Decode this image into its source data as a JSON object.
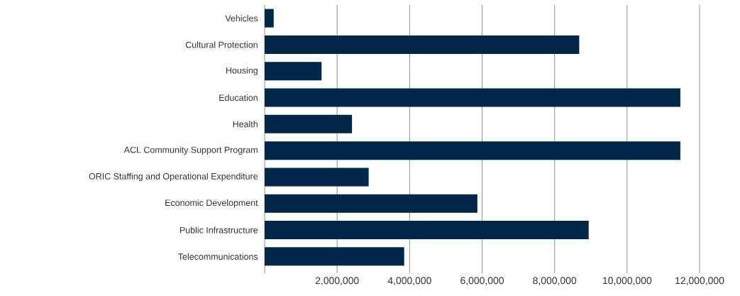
{
  "chart_data": {
    "type": "bar",
    "orientation": "horizontal",
    "categories": [
      "Vehicles",
      "Cultural Protection",
      "Housing",
      "Education",
      "Health",
      "ACL Community Support Program",
      "ORIC Staffing and Operational Expenditure",
      "Economic Development",
      "Public Infrastructure",
      "Telecommunications"
    ],
    "values": [
      250000,
      8680000,
      1570000,
      11470000,
      2410000,
      11470000,
      2870000,
      5870000,
      8940000,
      3850000
    ],
    "color": "#012749",
    "xlim": [
      0,
      12000000
    ],
    "xticks": [
      {
        "value": 0,
        "label": null
      },
      {
        "value": 2000000,
        "label": "2,000,000"
      },
      {
        "value": 4000000,
        "label": "4,000,000"
      },
      {
        "value": 6000000,
        "label": "6,000,000"
      },
      {
        "value": 8000000,
        "label": "8,000,000"
      },
      {
        "value": 10000000,
        "label": "10,000,000"
      },
      {
        "value": 12000000,
        "label": "12,000,000"
      }
    ],
    "grid": "x"
  }
}
